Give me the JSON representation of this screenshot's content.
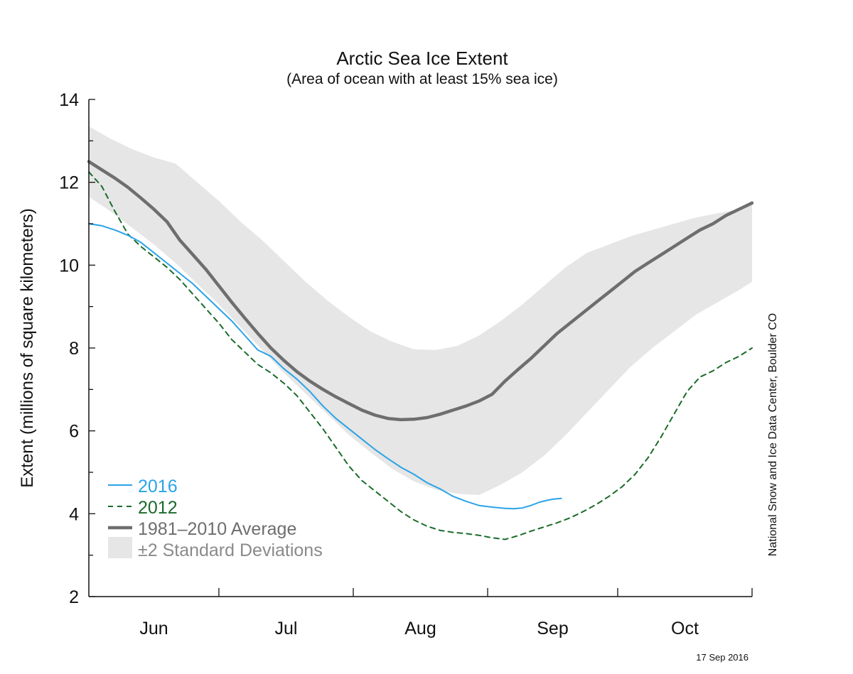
{
  "chart_data": {
    "type": "line",
    "title": "Arctic Sea Ice Extent",
    "subtitle": "(Area of ocean with at least 15% sea ice)",
    "ylabel": "Extent (millions of square kilometers)",
    "xlabel": "",
    "ylim": [
      2,
      14
    ],
    "y_ticks": [
      "2",
      "4",
      "6",
      "8",
      "10",
      "12",
      "14"
    ],
    "x_range_day": [
      152,
      305
    ],
    "months": [
      {
        "label": "Jun",
        "start": 152,
        "end": 182
      },
      {
        "label": "Jul",
        "start": 182,
        "end": 213
      },
      {
        "label": "Aug",
        "start": 213,
        "end": 244
      },
      {
        "label": "Sep",
        "start": 244,
        "end": 274
      },
      {
        "label": "Oct",
        "start": 274,
        "end": 305
      }
    ],
    "grid": false,
    "legend_position": "bottom-left",
    "series": [
      {
        "name": "2016",
        "color": "#2aa3e8",
        "style": "solid",
        "x": [
          152,
          155,
          158,
          161,
          164,
          167,
          170,
          173,
          176,
          179,
          182,
          185,
          188,
          191,
          194,
          197,
          200,
          203,
          206,
          209,
          212,
          215,
          218,
          221,
          224,
          227,
          230,
          233,
          236,
          239,
          242,
          245,
          248,
          250,
          252,
          254,
          256,
          258,
          259,
          261
        ],
        "y": [
          11.0,
          10.95,
          10.85,
          10.72,
          10.55,
          10.3,
          10.05,
          9.8,
          9.55,
          9.25,
          8.95,
          8.65,
          8.3,
          7.95,
          7.8,
          7.5,
          7.25,
          6.95,
          6.6,
          6.3,
          6.05,
          5.8,
          5.55,
          5.33,
          5.12,
          4.95,
          4.75,
          4.6,
          4.42,
          4.3,
          4.2,
          4.16,
          4.13,
          4.12,
          4.14,
          4.2,
          4.28,
          4.33,
          4.35,
          4.37
        ]
      },
      {
        "name": "2012",
        "color": "#1a6b2a",
        "style": "dashed",
        "x": [
          152,
          155,
          158,
          161,
          164,
          167,
          170,
          173,
          176,
          179,
          182,
          185,
          188,
          191,
          194,
          197,
          200,
          203,
          206,
          209,
          212,
          215,
          218,
          221,
          224,
          227,
          230,
          233,
          236,
          239,
          242,
          245,
          248,
          251,
          254,
          257,
          260,
          263,
          266,
          269,
          272,
          275,
          278,
          281,
          284,
          287,
          290,
          293,
          296,
          299,
          302,
          305
        ],
        "y": [
          12.25,
          11.9,
          11.3,
          10.75,
          10.45,
          10.2,
          9.95,
          9.65,
          9.3,
          8.95,
          8.6,
          8.2,
          7.9,
          7.6,
          7.4,
          7.15,
          6.85,
          6.45,
          6.05,
          5.6,
          5.15,
          4.8,
          4.55,
          4.3,
          4.05,
          3.85,
          3.7,
          3.6,
          3.55,
          3.52,
          3.48,
          3.42,
          3.38,
          3.47,
          3.58,
          3.68,
          3.78,
          3.9,
          4.05,
          4.22,
          4.42,
          4.65,
          4.95,
          5.35,
          5.85,
          6.4,
          6.95,
          7.3,
          7.45,
          7.65,
          7.8,
          8.0
        ]
      },
      {
        "name": "1981–2010 Average",
        "color": "#6e6e6e",
        "style": "solid",
        "x": [
          152,
          155,
          158,
          161,
          164,
          167,
          170,
          173,
          176,
          179,
          182,
          185,
          188,
          191,
          194,
          197,
          200,
          203,
          206,
          209,
          212,
          215,
          218,
          221,
          224,
          227,
          230,
          233,
          236,
          239,
          242,
          245,
          248,
          251,
          254,
          257,
          260,
          263,
          266,
          269,
          272,
          275,
          278,
          281,
          284,
          287,
          290,
          293,
          296,
          299,
          302,
          305
        ],
        "y": [
          12.5,
          12.3,
          12.1,
          11.88,
          11.62,
          11.35,
          11.05,
          10.6,
          10.25,
          9.9,
          9.5,
          9.1,
          8.72,
          8.35,
          8.0,
          7.7,
          7.43,
          7.2,
          7.0,
          6.82,
          6.66,
          6.5,
          6.38,
          6.3,
          6.27,
          6.28,
          6.32,
          6.4,
          6.5,
          6.6,
          6.72,
          6.88,
          7.2,
          7.48,
          7.75,
          8.05,
          8.35,
          8.6,
          8.85,
          9.1,
          9.35,
          9.6,
          9.85,
          10.05,
          10.25,
          10.45,
          10.65,
          10.85,
          11.0,
          11.2,
          11.35,
          11.5
        ]
      },
      {
        "name": "±2 Standard Deviations",
        "color": "#e6e6e6",
        "style": "band",
        "x": [
          152,
          157,
          162,
          167,
          172,
          177,
          182,
          187,
          192,
          197,
          202,
          207,
          212,
          217,
          222,
          227,
          232,
          237,
          242,
          247,
          252,
          257,
          262,
          267,
          272,
          277,
          282,
          287,
          292,
          297,
          302,
          305
        ],
        "upper": [
          13.35,
          13.05,
          12.8,
          12.6,
          12.45,
          12.0,
          11.55,
          11.05,
          10.6,
          10.1,
          9.6,
          9.15,
          8.75,
          8.4,
          8.15,
          7.97,
          7.95,
          8.05,
          8.3,
          8.65,
          9.05,
          9.5,
          9.95,
          10.3,
          10.5,
          10.7,
          10.85,
          11.0,
          11.15,
          11.25,
          11.35,
          11.45
        ],
        "lower": [
          11.65,
          11.3,
          10.9,
          10.5,
          10.05,
          9.55,
          9.05,
          8.5,
          7.95,
          7.4,
          6.9,
          6.4,
          5.9,
          5.48,
          5.08,
          4.78,
          4.58,
          4.48,
          4.45,
          4.7,
          5.0,
          5.4,
          5.9,
          6.45,
          7.0,
          7.55,
          8.0,
          8.4,
          8.8,
          9.1,
          9.4,
          9.6
        ]
      }
    ],
    "annotations": {
      "credit": "National Snow and Ice Data Center, Boulder CO",
      "date": "17 Sep 2016"
    }
  },
  "legend": [
    {
      "label": "2016",
      "color": "#2aa3e8",
      "style": "solid"
    },
    {
      "label": "2012",
      "color": "#1a6b2a",
      "style": "dashed"
    },
    {
      "label": "1981–2010 Average",
      "color": "#6e6e6e",
      "style": "thick"
    },
    {
      "label": "±2 Standard Deviations",
      "color": "#8a8a8a",
      "style": "box"
    }
  ]
}
